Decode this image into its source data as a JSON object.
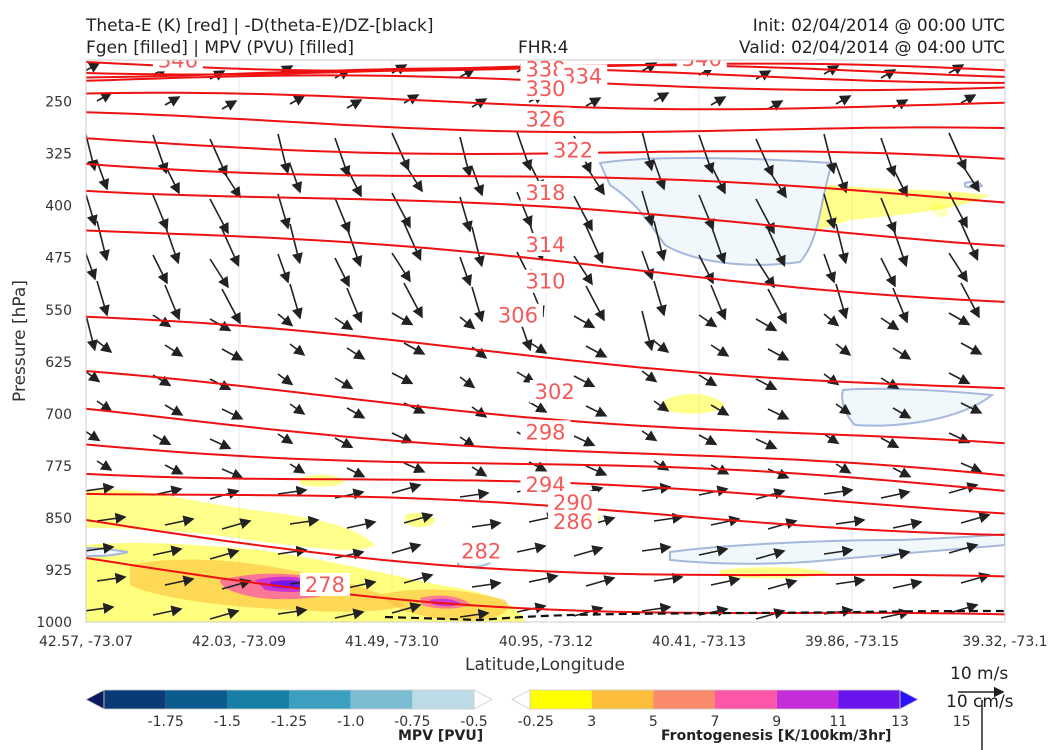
{
  "header": {
    "title_line1": "Theta-E (K) [red] | -D(theta-E)/DZ-[black]",
    "title_line2": "Fgen [filled] | MPV (PVU) [filled]",
    "fhr": "FHR:4",
    "init": "Init: 02/04/2014 @ 00:00 UTC",
    "valid": "Valid: 02/04/2014 @ 04:00 UTC"
  },
  "chart_data": {
    "type": "cross-section",
    "xlabel": "Latitude,Longitude",
    "ylabel": "Pressure [hPa]",
    "x_ticks": [
      "42.57, -73.07",
      "42.03, -73.09",
      "41.49, -73.10",
      "40.95, -73.12",
      "40.41, -73.13",
      "39.86, -73.15",
      "39.32, -73.1"
    ],
    "y_ticks": [
      250,
      325,
      400,
      475,
      550,
      625,
      700,
      775,
      850,
      925,
      1000
    ],
    "ylim": [
      1000,
      190
    ],
    "theta_e_labels": [
      {
        "value": "346",
        "x": 0.1,
        "p": 192
      },
      {
        "value": "338",
        "x": 0.5,
        "p": 205
      },
      {
        "value": "334",
        "x": 0.54,
        "p": 215
      },
      {
        "value": "330",
        "x": 0.5,
        "p": 233
      },
      {
        "value": "326",
        "x": 0.5,
        "p": 277
      },
      {
        "value": "322",
        "x": 0.53,
        "p": 322
      },
      {
        "value": "318",
        "x": 0.5,
        "p": 383
      },
      {
        "value": "314",
        "x": 0.5,
        "p": 458
      },
      {
        "value": "310",
        "x": 0.5,
        "p": 511
      },
      {
        "value": "306",
        "x": 0.47,
        "p": 560
      },
      {
        "value": "302",
        "x": 0.51,
        "p": 670
      },
      {
        "value": "298",
        "x": 0.5,
        "p": 728
      },
      {
        "value": "294",
        "x": 0.5,
        "p": 804
      },
      {
        "value": "290",
        "x": 0.53,
        "p": 830
      },
      {
        "value": "286",
        "x": 0.53,
        "p": 857
      },
      {
        "value": "282",
        "x": 0.43,
        "p": 900
      },
      {
        "value": "278",
        "x": 0.26,
        "p": 948
      },
      {
        "value": "346",
        "x": 0.67,
        "p": 190
      }
    ],
    "theta_e_color": "#ee1111",
    "wind_scale": {
      "label1": "10 m/s",
      "label2": "10 cm/s"
    },
    "mpv_colorbar": {
      "label": "MPV [PVU]",
      "ticks": [
        "-1.75",
        "-1.5",
        "-1.25",
        "-1.0",
        "-0.75",
        "-0.5",
        "-0.25"
      ],
      "colors": [
        "#0d1a5e",
        "#0b3b76",
        "#0b5b8e",
        "#177fa6",
        "#3d9fc0",
        "#7bbcd3",
        "#bddbe6",
        "#ffffff"
      ]
    },
    "fgen_colorbar": {
      "label": "Frontogenesis [K/100km/3hr]",
      "ticks": [
        "3",
        "5",
        "7",
        "9",
        "11",
        "13",
        "15"
      ],
      "colors": [
        "#ffffff",
        "#ffff00",
        "#fdbf3b",
        "#fb8a6b",
        "#fb56a8",
        "#c42ed8",
        "#6b15ee",
        "#2a12ff"
      ]
    }
  }
}
